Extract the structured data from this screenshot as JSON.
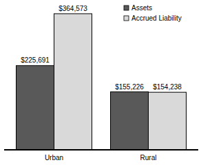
{
  "chart_data": {
    "type": "bar",
    "categories": [
      "Urban",
      "Rural"
    ],
    "series": [
      {
        "name": "Assets",
        "color": "#595959",
        "values": [
          225691,
          155226
        ],
        "value_labels": [
          "$225,691",
          "$155,226"
        ]
      },
      {
        "name": "Accrued Liability",
        "color": "#d9d9d9",
        "values": [
          364573,
          154238
        ],
        "value_labels": [
          "$364,573",
          "$154,238"
        ]
      }
    ],
    "ylim": [
      0,
      370000
    ],
    "data_labels": true,
    "tick_labels": "x",
    "legend": "top-right"
  }
}
